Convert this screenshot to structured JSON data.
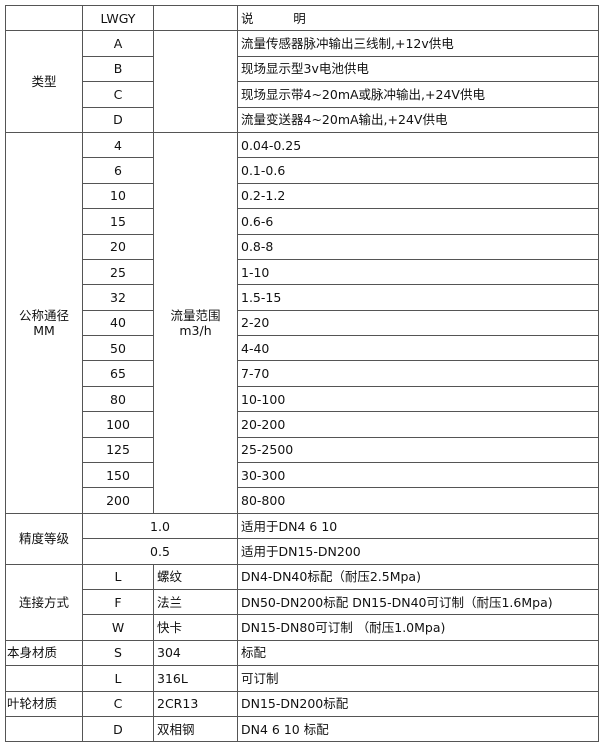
{
  "header": {
    "code": "LWGY",
    "description": "说          明"
  },
  "type_group": {
    "label": "类型",
    "rows": [
      {
        "code": "A",
        "description": "流量传感器脉冲输出三线制,+12v供电"
      },
      {
        "code": "B",
        "description": "现场显示型3v电池供电"
      },
      {
        "code": "C",
        "description": "现场显示带4~20mA或脉冲输出,+24V供电"
      },
      {
        "code": "D",
        "description": "流量变送器4~20mA输出,+24V供电"
      }
    ]
  },
  "diameter_group": {
    "label": "公称通径",
    "unit": "MM",
    "flow_label": "流量范围",
    "flow_unit": "m3/h",
    "rows": [
      {
        "size": "4",
        "range": "0.04-0.25"
      },
      {
        "size": "6",
        "range": "0.1-0.6"
      },
      {
        "size": "10",
        "range": "0.2-1.2"
      },
      {
        "size": "15",
        "range": "0.6-6"
      },
      {
        "size": "20",
        "range": "0.8-8"
      },
      {
        "size": "25",
        "range": "1-10"
      },
      {
        "size": "32",
        "range": "1.5-15"
      },
      {
        "size": "40",
        "range": "2-20"
      },
      {
        "size": "50",
        "range": "4-40"
      },
      {
        "size": "65",
        "range": "7-70"
      },
      {
        "size": "80",
        "range": "10-100"
      },
      {
        "size": "100",
        "range": "20-200"
      },
      {
        "size": "125",
        "range": "25-2500"
      },
      {
        "size": "150",
        "range": "30-300"
      },
      {
        "size": "200",
        "range": "80-800"
      }
    ]
  },
  "accuracy_group": {
    "label": "精度等级",
    "rows": [
      {
        "value": "1.0",
        "description": "适用于DN4  6  10"
      },
      {
        "value": "0.5",
        "description": "适用于DN15-DN200"
      }
    ]
  },
  "connection_group": {
    "label": "连接方式",
    "rows": [
      {
        "code": "L",
        "name": "螺纹",
        "description": "DN4-DN40标配（耐压2.5Mpa)"
      },
      {
        "code": "F",
        "name": "法兰",
        "description": "DN50-DN200标配 DN15-DN40可订制（耐压1.6Mpa)"
      },
      {
        "code": "W",
        "name": "快卡",
        "description": "DN15-DN80可订制 （耐压1.0Mpa)"
      }
    ]
  },
  "body_material_group": {
    "label": "本身材质",
    "rows": [
      {
        "code": "S",
        "name": "304",
        "description": "标配"
      },
      {
        "code": "L",
        "name": "316L",
        "description": "可订制"
      }
    ]
  },
  "impeller_material_group": {
    "label": "叶轮材质",
    "rows": [
      {
        "code": "C",
        "name": "2CR13",
        "description": "DN15-DN200标配"
      },
      {
        "code": "D",
        "name": "双相钢",
        "description": "DN4 6 10 标配"
      }
    ]
  }
}
